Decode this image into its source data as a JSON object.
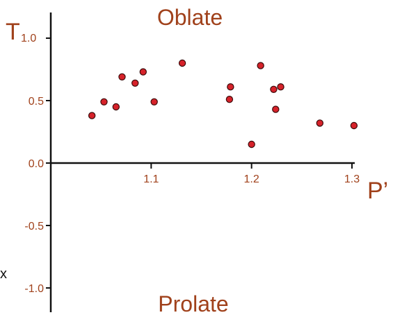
{
  "chart_data": {
    "type": "scatter",
    "title": "",
    "top_region_label": "Oblate",
    "bottom_region_label": "Prolate",
    "xlabel": "P’",
    "ylabel_main": "T",
    "ylabel_sub": "1.0",
    "stray_text": "x",
    "xlim": [
      1.0,
      1.3
    ],
    "ylim": [
      -1.15,
      1.15
    ],
    "x_ticks": [
      {
        "value": 1.1,
        "label": "1.1"
      },
      {
        "value": 1.2,
        "label": "1.2"
      },
      {
        "value": 1.3,
        "label": "1.3"
      }
    ],
    "y_ticks": [
      {
        "value": 0.5,
        "label": "0.5"
      },
      {
        "value": 0.0,
        "label": "0.0"
      },
      {
        "value": -0.5,
        "label": "-0.5"
      },
      {
        "value": -1.0,
        "label": "-1.0"
      }
    ],
    "points": [
      {
        "x": 1.041,
        "y": 0.38
      },
      {
        "x": 1.053,
        "y": 0.49
      },
      {
        "x": 1.065,
        "y": 0.45
      },
      {
        "x": 1.071,
        "y": 0.69
      },
      {
        "x": 1.084,
        "y": 0.64
      },
      {
        "x": 1.092,
        "y": 0.73
      },
      {
        "x": 1.103,
        "y": 0.49
      },
      {
        "x": 1.131,
        "y": 0.8
      },
      {
        "x": 1.178,
        "y": 0.51
      },
      {
        "x": 1.179,
        "y": 0.61
      },
      {
        "x": 1.2,
        "y": 0.15
      },
      {
        "x": 1.209,
        "y": 0.78
      },
      {
        "x": 1.222,
        "y": 0.59
      },
      {
        "x": 1.224,
        "y": 0.43
      },
      {
        "x": 1.229,
        "y": 0.61
      },
      {
        "x": 1.268,
        "y": 0.32
      },
      {
        "x": 1.302,
        "y": 0.3
      }
    ],
    "colors": {
      "label": "#a0411b",
      "axis": "#111111",
      "marker_fill": "#d6222a",
      "marker_stroke": "#3a0a0a"
    }
  }
}
